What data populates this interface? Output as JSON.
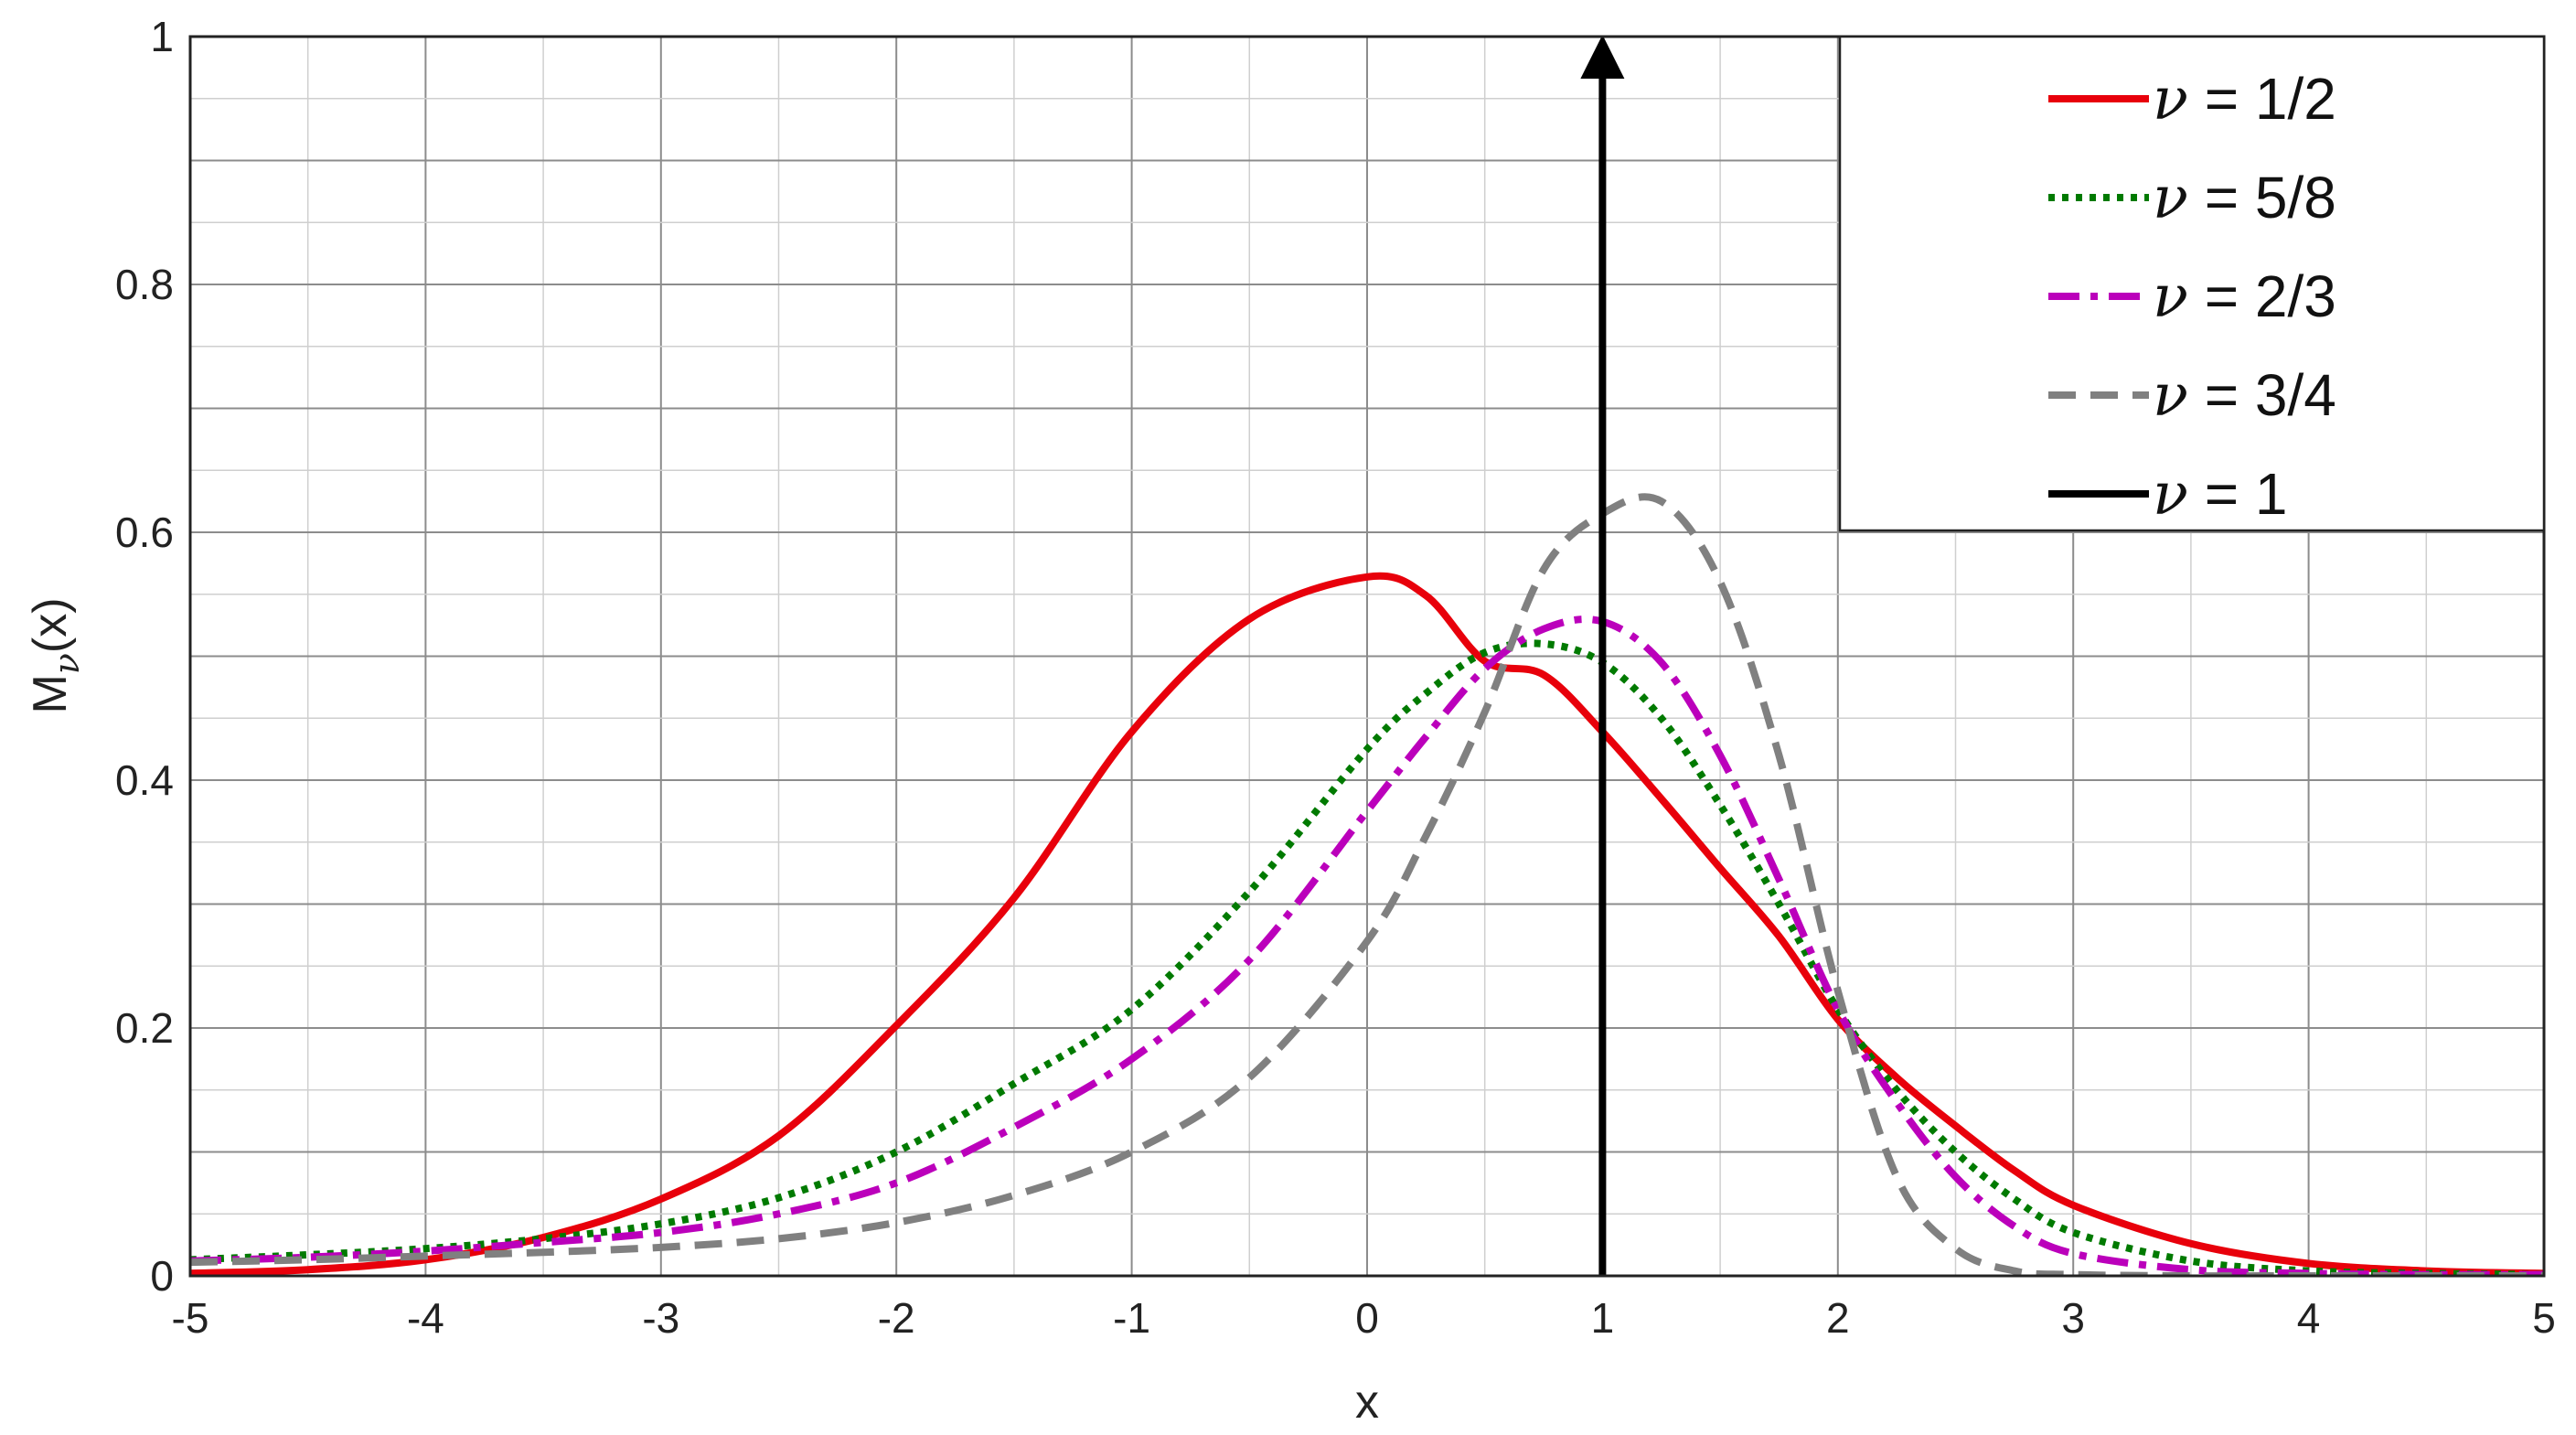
{
  "chart_data": {
    "type": "line",
    "xlabel": "x",
    "ylabel": "M",
    "ylabel_subscript": "ν",
    "ylabel_suffix": "(x)",
    "xlim": [
      -5,
      5
    ],
    "ylim": [
      0,
      1
    ],
    "xticks": [
      "-5",
      "-4",
      "-3",
      "-2",
      "-1",
      "0",
      "1",
      "2",
      "3",
      "4",
      "5"
    ],
    "yticks": [
      "0",
      "0.2",
      "0.4",
      "0.6",
      "0.8",
      "1"
    ],
    "grid": true,
    "minor_grid": true,
    "legend_position": "top-right",
    "x": [
      -5,
      -4.5,
      -4,
      -3.5,
      -3,
      -2.5,
      -2,
      -1.5,
      -1,
      -0.5,
      0,
      0.25,
      0.5,
      0.75,
      1,
      1.25,
      1.5,
      1.75,
      2,
      2.25,
      2.5,
      2.75,
      3,
      3.5,
      4,
      4.5,
      5
    ],
    "series": [
      {
        "name": "ν = 1/2",
        "color": "#e8000b",
        "style": "solid",
        "values": [
          0.002,
          0.005,
          0.013,
          0.031,
          0.062,
          0.113,
          0.202,
          0.305,
          0.439,
          0.53,
          0.564,
          0.549,
          0.496,
          0.485,
          0.439,
          0.385,
          0.329,
          0.274,
          0.207,
          0.16,
          0.121,
          0.085,
          0.057,
          0.026,
          0.01,
          0.004,
          0.002
        ]
      },
      {
        "name": "ν = 5/8",
        "color": "#007a00",
        "style": "dotted",
        "values": [
          0.013,
          0.017,
          0.022,
          0.03,
          0.042,
          0.063,
          0.1,
          0.155,
          0.215,
          0.31,
          0.425,
          0.47,
          0.503,
          0.51,
          0.495,
          0.45,
          0.38,
          0.3,
          0.215,
          0.15,
          0.1,
          0.062,
          0.035,
          0.012,
          0.004,
          0.002,
          0.001
        ]
      },
      {
        "name": "ν = 2/3",
        "color": "#bb00bb",
        "style": "dashdot",
        "values": [
          0.012,
          0.015,
          0.02,
          0.027,
          0.035,
          0.05,
          0.075,
          0.12,
          0.175,
          0.255,
          0.375,
          0.435,
          0.49,
          0.522,
          0.528,
          0.495,
          0.42,
          0.32,
          0.215,
          0.14,
          0.08,
          0.04,
          0.018,
          0.005,
          0.002,
          0.001,
          0.001
        ]
      },
      {
        "name": "ν = 3/4",
        "color": "#808080",
        "style": "dashed",
        "values": [
          0.011,
          0.013,
          0.016,
          0.019,
          0.023,
          0.03,
          0.043,
          0.065,
          0.1,
          0.16,
          0.27,
          0.355,
          0.455,
          0.57,
          0.615,
          0.625,
          0.56,
          0.42,
          0.23,
          0.08,
          0.022,
          0.004,
          0.001,
          0.0,
          0.0,
          0.0,
          0.0
        ]
      },
      {
        "name": "ν = 1",
        "color": "#000000",
        "style": "solid",
        "delta_at": 1
      }
    ]
  }
}
